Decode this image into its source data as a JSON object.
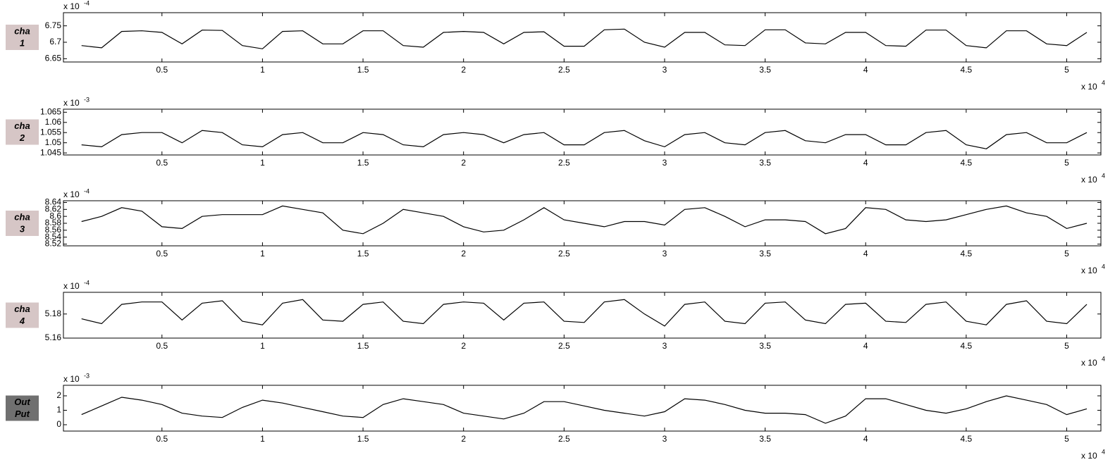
{
  "chart_data": [
    {
      "type": "line",
      "panel_label": [
        "cha",
        "1"
      ],
      "label_color": "#d6c6c6",
      "y_multiplier": "x 10",
      "y_exponent": "-4",
      "x_multiplier": "x 10",
      "x_exponent": "4",
      "xlim": [
        0.01,
        5.17
      ],
      "xticks": [
        0.5,
        1,
        1.5,
        2,
        2.5,
        3,
        3.5,
        4,
        4.5,
        5
      ],
      "ylim": [
        6.64,
        6.79
      ],
      "yticks": [
        6.65,
        6.7,
        6.75
      ],
      "color": "#000000",
      "x": [
        0.1,
        0.2,
        0.3,
        0.4,
        0.5,
        0.6,
        0.7,
        0.8,
        0.9,
        1.0,
        1.1,
        1.2,
        1.3,
        1.4,
        1.5,
        1.6,
        1.7,
        1.8,
        1.9,
        2.0,
        2.1,
        2.2,
        2.3,
        2.4,
        2.5,
        2.6,
        2.7,
        2.8,
        2.9,
        3.0,
        3.1,
        3.2,
        3.3,
        3.4,
        3.5,
        3.6,
        3.7,
        3.8,
        3.9,
        4.0,
        4.1,
        4.2,
        4.3,
        4.4,
        4.5,
        4.6,
        4.7,
        4.8,
        4.9,
        5.0,
        5.1
      ],
      "values": [
        6.69,
        6.683,
        6.733,
        6.735,
        6.73,
        6.695,
        6.737,
        6.736,
        6.69,
        6.68,
        6.733,
        6.735,
        6.695,
        6.695,
        6.735,
        6.735,
        6.69,
        6.685,
        6.73,
        6.733,
        6.73,
        6.695,
        6.73,
        6.732,
        6.688,
        6.688,
        6.738,
        6.74,
        6.7,
        6.685,
        6.73,
        6.73,
        6.692,
        6.69,
        6.738,
        6.738,
        6.698,
        6.695,
        6.73,
        6.73,
        6.69,
        6.688,
        6.737,
        6.737,
        6.69,
        6.683,
        6.735,
        6.735,
        6.695,
        6.69,
        6.73
      ]
    },
    {
      "type": "line",
      "panel_label": [
        "cha",
        "2"
      ],
      "label_color": "#d6c6c6",
      "y_multiplier": "x 10",
      "y_exponent": "-3",
      "x_multiplier": "x 10",
      "x_exponent": "4",
      "xlim": [
        0.01,
        5.17
      ],
      "xticks": [
        0.5,
        1,
        1.5,
        2,
        2.5,
        3,
        3.5,
        4,
        4.5,
        5
      ],
      "ylim": [
        1.044,
        1.0665
      ],
      "yticks": [
        1.045,
        1.05,
        1.055,
        1.06,
        1.065
      ],
      "color": "#000000",
      "x": [
        0.1,
        0.2,
        0.3,
        0.4,
        0.5,
        0.6,
        0.7,
        0.8,
        0.9,
        1.0,
        1.1,
        1.2,
        1.3,
        1.4,
        1.5,
        1.6,
        1.7,
        1.8,
        1.9,
        2.0,
        2.1,
        2.2,
        2.3,
        2.4,
        2.5,
        2.6,
        2.7,
        2.8,
        2.9,
        3.0,
        3.1,
        3.2,
        3.3,
        3.4,
        3.5,
        3.6,
        3.7,
        3.8,
        3.9,
        4.0,
        4.1,
        4.2,
        4.3,
        4.4,
        4.5,
        4.6,
        4.7,
        4.8,
        4.9,
        5.0,
        5.1
      ],
      "values": [
        1.049,
        1.048,
        1.054,
        1.055,
        1.055,
        1.05,
        1.056,
        1.055,
        1.049,
        1.048,
        1.054,
        1.055,
        1.05,
        1.05,
        1.055,
        1.054,
        1.049,
        1.048,
        1.054,
        1.055,
        1.054,
        1.05,
        1.054,
        1.055,
        1.049,
        1.049,
        1.055,
        1.056,
        1.051,
        1.048,
        1.054,
        1.055,
        1.05,
        1.049,
        1.055,
        1.056,
        1.051,
        1.05,
        1.054,
        1.054,
        1.049,
        1.049,
        1.055,
        1.056,
        1.049,
        1.047,
        1.054,
        1.055,
        1.05,
        1.05,
        1.055
      ]
    },
    {
      "type": "line",
      "panel_label": [
        "cha",
        "3"
      ],
      "label_color": "#d6c6c6",
      "y_multiplier": "x 10",
      "y_exponent": "-4",
      "x_multiplier": "x 10",
      "x_exponent": "4",
      "xlim": [
        0.01,
        5.17
      ],
      "xticks": [
        0.5,
        1,
        1.5,
        2,
        2.5,
        3,
        3.5,
        4,
        4.5,
        5
      ],
      "ylim": [
        8.515,
        8.645
      ],
      "yticks": [
        8.52,
        8.54,
        8.56,
        8.58,
        8.6,
        8.62,
        8.64
      ],
      "color": "#000000",
      "x": [
        0.1,
        0.2,
        0.3,
        0.4,
        0.5,
        0.6,
        0.7,
        0.8,
        0.9,
        1.0,
        1.1,
        1.2,
        1.3,
        1.4,
        1.5,
        1.6,
        1.7,
        1.8,
        1.9,
        2.0,
        2.1,
        2.2,
        2.3,
        2.4,
        2.5,
        2.6,
        2.7,
        2.8,
        2.9,
        3.0,
        3.1,
        3.2,
        3.3,
        3.4,
        3.5,
        3.6,
        3.7,
        3.8,
        3.9,
        4.0,
        4.1,
        4.2,
        4.3,
        4.4,
        4.5,
        4.6,
        4.7,
        4.8,
        4.9,
        5.0,
        5.1
      ],
      "values": [
        8.585,
        8.6,
        8.625,
        8.615,
        8.57,
        8.565,
        8.6,
        8.605,
        8.605,
        8.605,
        8.63,
        8.62,
        8.61,
        8.56,
        8.55,
        8.58,
        8.62,
        8.61,
        8.6,
        8.57,
        8.555,
        8.56,
        8.59,
        8.625,
        8.59,
        8.58,
        8.57,
        8.585,
        8.585,
        8.575,
        8.62,
        8.625,
        8.6,
        8.57,
        8.59,
        8.59,
        8.585,
        8.55,
        8.565,
        8.625,
        8.62,
        8.59,
        8.585,
        8.59,
        8.605,
        8.62,
        8.63,
        8.61,
        8.6,
        8.565,
        8.58
      ]
    },
    {
      "type": "line",
      "panel_label": [
        "cha",
        "4"
      ],
      "label_color": "#d6c6c6",
      "y_multiplier": "x 10",
      "y_exponent": "-4",
      "x_multiplier": "x 10",
      "x_exponent": "4",
      "xlim": [
        0.01,
        5.17
      ],
      "xticks": [
        0.5,
        1,
        1.5,
        2,
        2.5,
        3,
        3.5,
        4,
        4.5,
        5
      ],
      "ylim": [
        5.16,
        5.198
      ],
      "yticks": [
        5.16,
        5.18
      ],
      "color": "#000000",
      "x": [
        0.1,
        0.2,
        0.3,
        0.4,
        0.5,
        0.6,
        0.7,
        0.8,
        0.9,
        1.0,
        1.1,
        1.2,
        1.3,
        1.4,
        1.5,
        1.6,
        1.7,
        1.8,
        1.9,
        2.0,
        2.1,
        2.2,
        2.3,
        2.4,
        2.5,
        2.6,
        2.7,
        2.8,
        2.9,
        3.0,
        3.1,
        3.2,
        3.3,
        3.4,
        3.5,
        3.6,
        3.7,
        3.8,
        3.9,
        4.0,
        4.1,
        4.2,
        4.3,
        4.4,
        4.5,
        4.6,
        4.7,
        4.8,
        4.9,
        5.0,
        5.1
      ],
      "values": [
        5.176,
        5.172,
        5.188,
        5.19,
        5.19,
        5.175,
        5.189,
        5.191,
        5.174,
        5.171,
        5.189,
        5.192,
        5.175,
        5.174,
        5.188,
        5.19,
        5.174,
        5.172,
        5.188,
        5.19,
        5.189,
        5.175,
        5.189,
        5.19,
        5.174,
        5.173,
        5.19,
        5.192,
        5.18,
        5.17,
        5.188,
        5.19,
        5.174,
        5.172,
        5.189,
        5.19,
        5.175,
        5.172,
        5.188,
        5.189,
        5.174,
        5.173,
        5.188,
        5.19,
        5.174,
        5.171,
        5.188,
        5.191,
        5.174,
        5.172,
        5.188
      ]
    },
    {
      "type": "line",
      "panel_label": [
        "Out",
        "Put"
      ],
      "label_color": "#707070",
      "y_multiplier": "x 10",
      "y_exponent": "-3",
      "x_multiplier": "x 10",
      "x_exponent": "4",
      "xlim": [
        0.01,
        5.17
      ],
      "xticks": [
        0.5,
        1,
        1.5,
        2,
        2.5,
        3,
        3.5,
        4,
        4.5,
        5
      ],
      "ylim": [
        -0.44,
        2.73
      ],
      "yticks": [
        0,
        1,
        2
      ],
      "color": "#000000",
      "x": [
        0.1,
        0.2,
        0.3,
        0.4,
        0.5,
        0.6,
        0.7,
        0.8,
        0.9,
        1.0,
        1.1,
        1.2,
        1.3,
        1.4,
        1.5,
        1.6,
        1.7,
        1.8,
        1.9,
        2.0,
        2.1,
        2.2,
        2.3,
        2.4,
        2.5,
        2.6,
        2.7,
        2.8,
        2.9,
        3.0,
        3.1,
        3.2,
        3.3,
        3.4,
        3.5,
        3.6,
        3.7,
        3.8,
        3.9,
        4.0,
        4.1,
        4.2,
        4.3,
        4.4,
        4.5,
        4.6,
        4.7,
        4.8,
        4.9,
        5.0,
        5.1
      ],
      "values": [
        0.7,
        1.3,
        1.9,
        1.7,
        1.4,
        0.8,
        0.6,
        0.5,
        1.2,
        1.7,
        1.5,
        1.2,
        0.9,
        0.6,
        0.5,
        1.4,
        1.8,
        1.6,
        1.4,
        0.8,
        0.6,
        0.4,
        0.8,
        1.6,
        1.6,
        1.3,
        1.0,
        0.8,
        0.6,
        0.9,
        1.8,
        1.7,
        1.4,
        1.0,
        0.8,
        0.8,
        0.7,
        0.1,
        0.6,
        1.8,
        1.8,
        1.4,
        1.0,
        0.8,
        1.1,
        1.6,
        2.0,
        1.7,
        1.4,
        0.7,
        1.1
      ]
    }
  ]
}
